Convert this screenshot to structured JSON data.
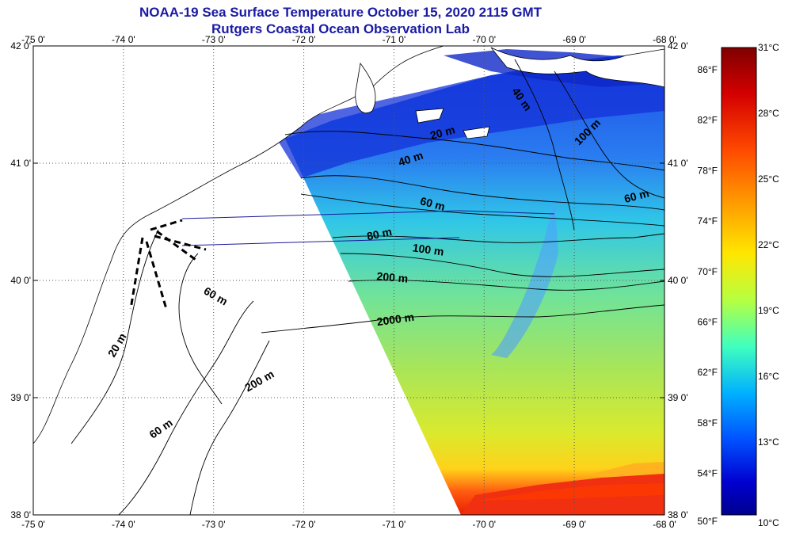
{
  "header": {
    "title": "NOAA-19 Sea Surface Temperature October 15, 2020 2115 GMT",
    "subtitle": "Rutgers Coastal Ocean Observation Lab"
  },
  "map": {
    "lat_labels": [
      "42 0'",
      "41 0'",
      "40 0'",
      "39 0'",
      "38 0'"
    ],
    "lon_labels": [
      "-75 0'",
      "-74 0'",
      "-73 0'",
      "-72 0'",
      "-71 0'",
      "-70 0'",
      "-69 0'",
      "-68 0'"
    ],
    "contours": [
      {
        "text": "20 m",
        "angle": -15
      },
      {
        "text": "40 m",
        "angle": -18
      },
      {
        "text": "40 m",
        "angle": 55
      },
      {
        "text": "100 m",
        "angle": -45
      },
      {
        "text": "60 m",
        "angle": 15
      },
      {
        "text": "60 m",
        "angle": -15
      },
      {
        "text": "80 m",
        "angle": -12
      },
      {
        "text": "100 m",
        "angle": 8
      },
      {
        "text": "200 m",
        "angle": 5
      },
      {
        "text": "2000 m",
        "angle": -8
      },
      {
        "text": "60 m",
        "angle": 30
      },
      {
        "text": "20 m",
        "angle": -60
      },
      {
        "text": "200 m",
        "angle": -30
      },
      {
        "text": "60 m",
        "angle": -35
      }
    ]
  },
  "colorbar": {
    "fahrenheit_labels": [
      "86°F",
      "82°F",
      "78°F",
      "74°F",
      "70°F",
      "66°F",
      "62°F",
      "58°F",
      "54°F",
      "50°F"
    ],
    "celsius_labels": [
      "31°C",
      "28°C",
      "25°C",
      "22°C",
      "19°C",
      "16°C",
      "13°C",
      "10°C"
    ],
    "colors": [
      "#7f0000",
      "#d40000",
      "#ff4a00",
      "#ff9a00",
      "#ffe600",
      "#b7ff40",
      "#3fffbf",
      "#00b0ff",
      "#0050ff",
      "#0000d0",
      "#00008f"
    ]
  }
}
